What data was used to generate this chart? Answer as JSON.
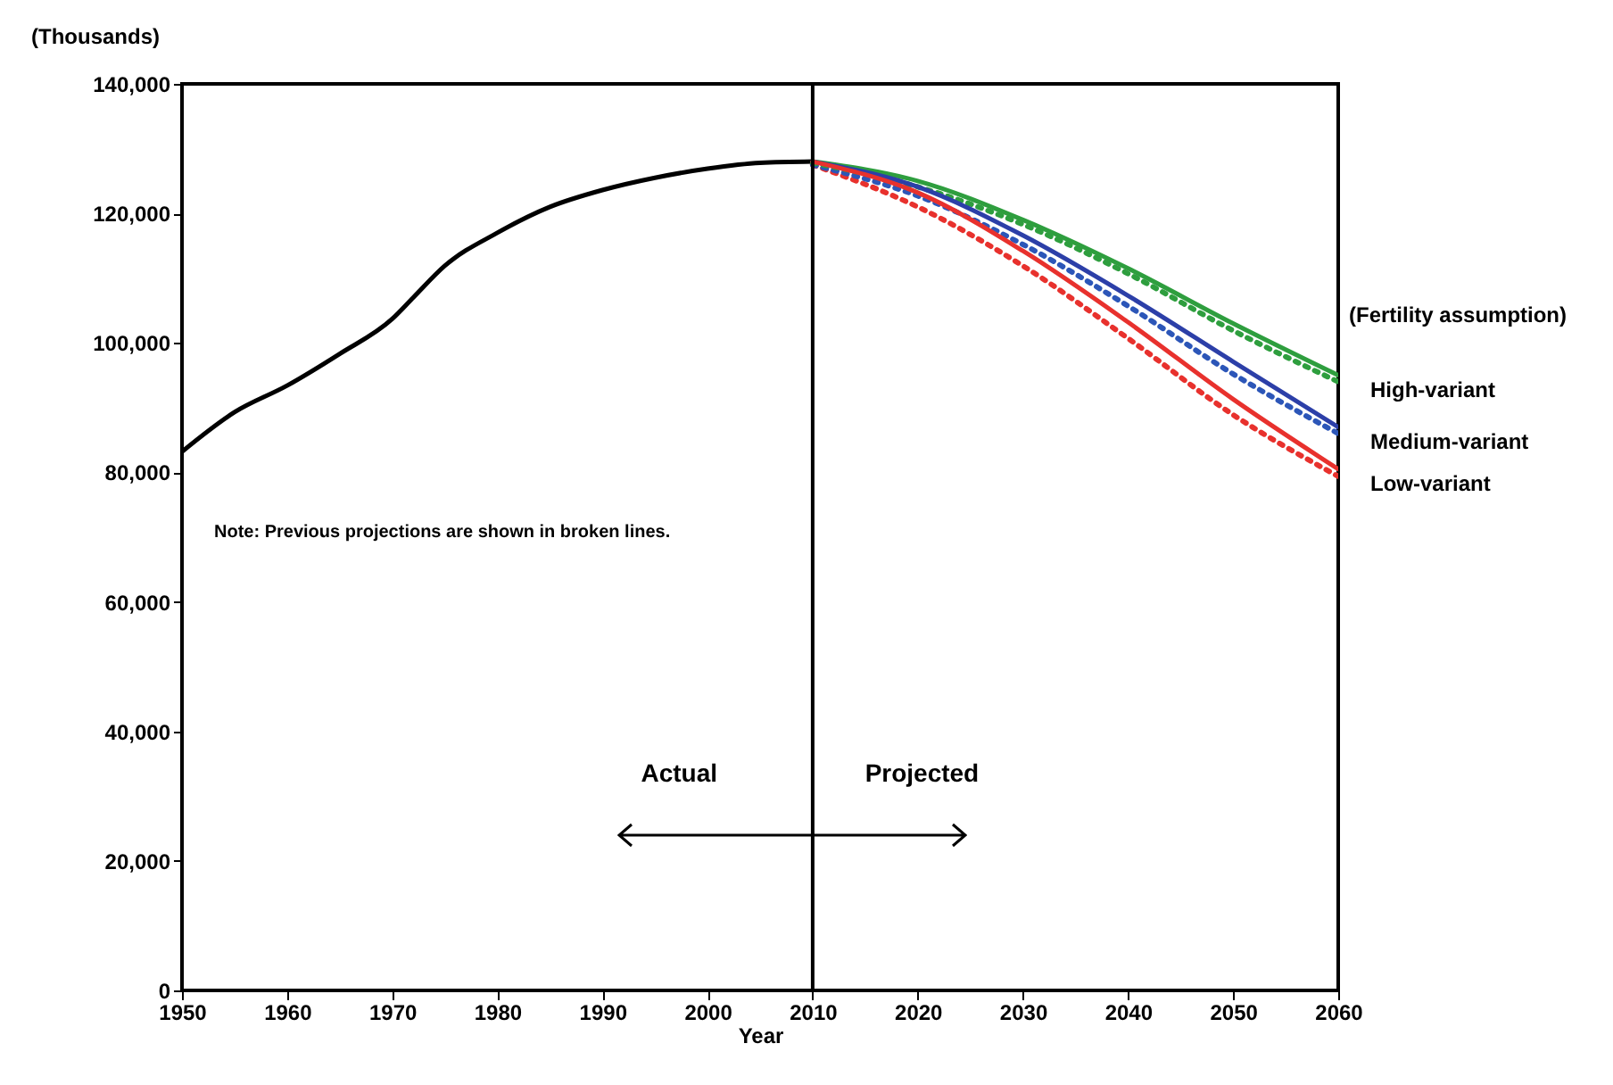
{
  "chart_data": {
    "type": "line",
    "xlabel": "Year",
    "ylabel": "(Thousands)",
    "legend_title": "(Fertility assumption)",
    "xlim": [
      1950,
      2060
    ],
    "xticks": [
      1950,
      1960,
      1970,
      1980,
      1990,
      2000,
      2010,
      2020,
      2030,
      2040,
      2050,
      2060
    ],
    "ylim": [
      0,
      140000
    ],
    "yticks": [
      0,
      {
        "value": 20000,
        "label": "20,000"
      },
      {
        "value": 40000,
        "label": "40,000"
      },
      {
        "value": 60000,
        "label": "60,000"
      },
      {
        "value": 80000,
        "label": "80,000"
      },
      {
        "value": 100000,
        "label": "100,000"
      },
      {
        "value": 120000,
        "label": "120,000"
      },
      {
        "value": 140000,
        "label": "140,000"
      }
    ],
    "grid": false,
    "marker": "none",
    "legend": "right",
    "ref_lines": [
      {
        "axis": "x",
        "value": 2010,
        "color": "#000000"
      }
    ],
    "annotations": [
      "Note: Previous projections are shown in broken lines.",
      "Actual",
      "Projected"
    ],
    "series": [
      {
        "color": "#000000",
        "line_style": "solid",
        "x": [
          1950,
          1955,
          1960,
          1965,
          1970,
          1972,
          1975,
          1980,
          1985,
          1990,
          1995,
          2000,
          2005,
          2010
        ],
        "values": [
          83200,
          89300,
          93400,
          98300,
          103700,
          107000,
          111900,
          117000,
          121000,
          123600,
          125500,
          126900,
          127800,
          128000
        ]
      },
      {
        "color": "#e8312d",
        "line_style": "dotted",
        "x": [
          2010,
          2020,
          2030,
          2040,
          2050,
          2060
        ],
        "values": [
          127500,
          121000,
          111900,
          100700,
          88900,
          79400
        ]
      },
      {
        "color": "#2c56b8",
        "line_style": "dotted",
        "x": [
          2010,
          2020,
          2030,
          2040,
          2050,
          2060
        ],
        "values": [
          127500,
          122700,
          115200,
          105700,
          95200,
          86000
        ]
      },
      {
        "color": "#2e9e3e",
        "line_style": "dotted",
        "x": [
          2010,
          2020,
          2030,
          2040,
          2050,
          2060
        ],
        "values": [
          127800,
          124100,
          118300,
          110700,
          101900,
          94000
        ]
      },
      {
        "name": "High-variant",
        "color": "#2e9e3e",
        "line_style": "solid",
        "x": [
          2010,
          2020,
          2030,
          2040,
          2050,
          2060
        ],
        "values": [
          128000,
          125000,
          119000,
          111500,
          103000,
          95000
        ]
      },
      {
        "name": "Medium-variant",
        "color": "#2c3fa8",
        "line_style": "solid",
        "x": [
          2010,
          2020,
          2030,
          2040,
          2050,
          2060
        ],
        "values": [
          128000,
          124100,
          116600,
          107300,
          97100,
          87000
        ]
      },
      {
        "name": "Low-variant",
        "color": "#e8312d",
        "line_style": "solid",
        "x": [
          2010,
          2020,
          2030,
          2040,
          2050,
          2060
        ],
        "values": [
          128000,
          123200,
          114200,
          103200,
          91300,
          80500
        ]
      }
    ]
  }
}
